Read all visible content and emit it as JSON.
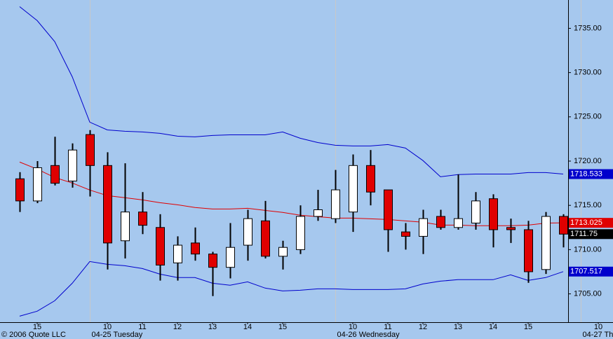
{
  "chart_data": {
    "type": "candlestick",
    "footer": "© 2006 Quote LLC",
    "x": [
      0,
      1,
      2,
      3,
      4,
      5,
      6,
      7,
      8,
      9,
      10,
      11,
      12,
      13,
      14,
      15,
      16,
      17,
      18,
      19,
      20,
      21,
      22,
      23,
      24,
      25,
      26,
      27,
      28,
      29,
      30,
      31
    ],
    "open": [
      1718.0,
      1715.5,
      1719.5,
      1717.75,
      1723.0,
      1719.5,
      1711.0,
      1714.25,
      1712.5,
      1708.5,
      1710.75,
      1709.5,
      1708.0,
      1710.5,
      1713.25,
      1709.25,
      1710.0,
      1713.75,
      1713.5,
      1714.25,
      1719.5,
      1716.75,
      1712.0,
      1711.5,
      1713.75,
      1712.5,
      1713.0,
      1715.75,
      1712.5,
      1712.25,
      1707.75,
      1713.75
    ],
    "high": [
      1718.75,
      1720.0,
      1722.75,
      1722.0,
      1723.5,
      1721.0,
      1719.75,
      1716.5,
      1714.0,
      1711.5,
      1712.5,
      1709.75,
      1713.0,
      1714.5,
      1715.5,
      1711.0,
      1715.0,
      1716.75,
      1719.0,
      1720.75,
      1721.25,
      1716.75,
      1713.0,
      1714.5,
      1714.5,
      1718.5,
      1716.5,
      1716.25,
      1713.5,
      1713.25,
      1714.25,
      1714.0
    ],
    "low": [
      1714.25,
      1715.25,
      1717.25,
      1717.0,
      1716.0,
      1707.75,
      1709.0,
      1711.75,
      1706.5,
      1706.5,
      1708.75,
      1704.75,
      1706.75,
      1708.75,
      1709.0,
      1707.75,
      1709.5,
      1713.25,
      1713.0,
      1712.0,
      1715.0,
      1709.75,
      1710.0,
      1709.5,
      1712.25,
      1712.25,
      1712.25,
      1710.25,
      1710.75,
      1706.25,
      1707.25,
      1710.25
    ],
    "close": [
      1715.5,
      1719.25,
      1717.5,
      1721.25,
      1719.5,
      1710.75,
      1714.25,
      1712.75,
      1708.25,
      1710.5,
      1709.5,
      1708.0,
      1710.25,
      1713.5,
      1709.25,
      1710.25,
      1713.75,
      1714.5,
      1716.75,
      1719.5,
      1716.5,
      1712.25,
      1711.5,
      1713.5,
      1712.5,
      1713.5,
      1715.5,
      1712.25,
      1712.25,
      1707.5,
      1713.75,
      1711.75
    ],
    "up_color": "#ffffff",
    "down_color": "#e00000",
    "last_label": "1711.75",
    "last_label_color": "#000000",
    "overlays": [
      {
        "color": "#0000cc",
        "last_label": "1718.533",
        "values": [
          1737.45,
          1735.87,
          1733.5,
          1729.53,
          1724.4,
          1723.52,
          1723.37,
          1723.29,
          1723.13,
          1722.82,
          1722.74,
          1722.9,
          1722.97,
          1722.97,
          1722.97,
          1723.29,
          1722.58,
          1722.1,
          1721.79,
          1721.71,
          1721.71,
          1721.87,
          1721.47,
          1720.06,
          1718.23,
          1718.47,
          1718.54,
          1718.54,
          1718.54,
          1718.7,
          1718.7,
          1718.533
        ]
      },
      {
        "color": "#e00000",
        "last_label": "1713.025",
        "values": [
          1719.89,
          1719.1,
          1718.15,
          1717.52,
          1716.73,
          1716.1,
          1715.86,
          1715.62,
          1715.3,
          1715.06,
          1714.75,
          1714.59,
          1714.59,
          1714.67,
          1714.43,
          1714.2,
          1713.88,
          1713.72,
          1713.56,
          1713.56,
          1713.48,
          1713.4,
          1713.24,
          1713.09,
          1712.77,
          1712.77,
          1712.7,
          1712.7,
          1712.7,
          1712.77,
          1713.0,
          1713.025
        ]
      },
      {
        "color": "#0000cc",
        "last_label": "1707.517",
        "values": [
          1702.48,
          1703.04,
          1704.22,
          1706.2,
          1708.65,
          1708.34,
          1708.18,
          1707.86,
          1707.23,
          1706.84,
          1706.84,
          1706.2,
          1705.97,
          1706.36,
          1705.65,
          1705.33,
          1705.41,
          1705.57,
          1705.57,
          1705.49,
          1705.49,
          1705.49,
          1705.57,
          1706.12,
          1706.44,
          1706.6,
          1706.6,
          1706.6,
          1707.15,
          1706.52,
          1706.84,
          1707.517
        ]
      }
    ],
    "xlim": [
      -1.12,
      31.28
    ],
    "ylim": [
      1701.8,
      1738.2
    ],
    "yticks": [
      {
        "value": 1705,
        "label": "1705.00"
      },
      {
        "value": 1710,
        "label": "1710.00"
      },
      {
        "value": 1715,
        "label": "1715.00"
      },
      {
        "value": 1720,
        "label": "1720.00"
      },
      {
        "value": 1725,
        "label": "1725.00"
      },
      {
        "value": 1730,
        "label": "1730.00"
      },
      {
        "value": 1735,
        "label": "1735.00"
      }
    ],
    "xticks": [
      {
        "value": 1,
        "label": "15"
      },
      {
        "value": 5,
        "label": "10"
      },
      {
        "value": 7,
        "label": "11"
      },
      {
        "value": 9,
        "label": "12"
      },
      {
        "value": 11,
        "label": "13"
      },
      {
        "value": 13,
        "label": "14"
      },
      {
        "value": 15,
        "label": "15"
      },
      {
        "value": 19,
        "label": "10"
      },
      {
        "value": 21,
        "label": "11"
      },
      {
        "value": 23,
        "label": "12"
      },
      {
        "value": 25,
        "label": "13"
      },
      {
        "value": 27,
        "label": "14"
      },
      {
        "value": 29,
        "label": "15"
      },
      {
        "value": 33,
        "label": "10"
      }
    ],
    "day_labels": [
      {
        "value": 4,
        "label": "04-25 Tuesday"
      },
      {
        "value": 18,
        "label": "04-26 Wednesday"
      },
      {
        "value": 32,
        "label": "04-27 Th"
      }
    ]
  }
}
